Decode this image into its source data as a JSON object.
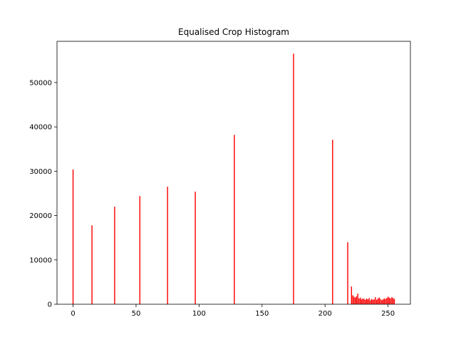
{
  "chart_data": {
    "type": "bar",
    "title": "Equalised Crop Histogram",
    "xlabel": "",
    "ylabel": "",
    "xlim": [
      -12.75,
      267.75
    ],
    "ylim": [
      0,
      59300
    ],
    "x_ticks": [
      0,
      50,
      100,
      150,
      200,
      250
    ],
    "y_ticks": [
      0,
      10000,
      20000,
      30000,
      40000,
      50000
    ],
    "bar_color": "#ff0000",
    "bar_width": 0.8,
    "grid": false,
    "legend": "none",
    "x": [
      0,
      15,
      33,
      53,
      75,
      97,
      128,
      175,
      206,
      218,
      221,
      222,
      223,
      224,
      225,
      226,
      227,
      228,
      229,
      230,
      231,
      232,
      233,
      234,
      235,
      236,
      237,
      238,
      239,
      240,
      241,
      242,
      243,
      244,
      245,
      246,
      247,
      248,
      249,
      250,
      251,
      252,
      253,
      254,
      255
    ],
    "values": [
      30400,
      17800,
      22000,
      24400,
      26500,
      25400,
      38200,
      56500,
      37100,
      14000,
      4000,
      2000,
      1700,
      1500,
      1800,
      2400,
      1300,
      1500,
      1100,
      1300,
      1200,
      1000,
      1300,
      1100,
      1400,
      900,
      1200,
      1000,
      1100,
      1600,
      1000,
      1300,
      1500,
      1200,
      900,
      1100,
      1300,
      1200,
      1400,
      1700,
      1500,
      1300,
      1600,
      1400,
      1200
    ]
  }
}
